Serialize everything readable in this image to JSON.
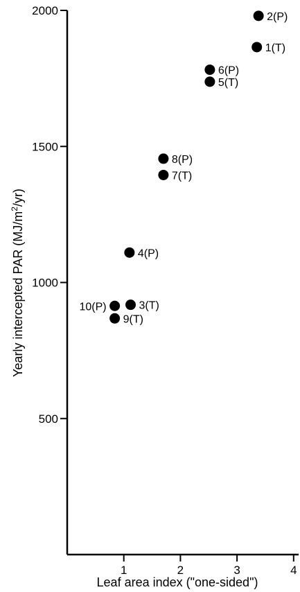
{
  "chart_data": {
    "type": "scatter",
    "title": "",
    "xlabel": "Leaf area index (\"one-sided\")",
    "ylabel_main": "Yearly intercepted PAR (MJ/m",
    "ylabel_sup": "2",
    "ylabel_end": "/yr)",
    "xlim": [
      0,
      4.2
    ],
    "ylim": [
      0,
      2000
    ],
    "x_ticks": [
      1,
      2,
      3,
      4
    ],
    "x_tick_labels": [
      "1",
      "2",
      "3",
      "4"
    ],
    "y_ticks": [
      500,
      1000,
      1500,
      2000
    ],
    "y_tick_labels": [
      "500",
      "1000",
      "1500",
      "2000"
    ],
    "grid": false,
    "legend": "none",
    "marker_color": "#000000",
    "points": [
      {
        "label": "1(T)",
        "x": 3.35,
        "y": 1865,
        "label_side": "right"
      },
      {
        "label": "2(P)",
        "x": 3.38,
        "y": 1980,
        "label_side": "right"
      },
      {
        "label": "3(T)",
        "x": 1.12,
        "y": 918,
        "label_side": "right"
      },
      {
        "label": "4(P)",
        "x": 1.1,
        "y": 1110,
        "label_side": "right"
      },
      {
        "label": "5(T)",
        "x": 2.52,
        "y": 1738,
        "label_side": "right"
      },
      {
        "label": "6(P)",
        "x": 2.52,
        "y": 1782,
        "label_side": "right"
      },
      {
        "label": "7(T)",
        "x": 1.7,
        "y": 1395,
        "label_side": "right"
      },
      {
        "label": "8(P)",
        "x": 1.7,
        "y": 1455,
        "label_side": "right"
      },
      {
        "label": "9(T)",
        "x": 0.84,
        "y": 868,
        "label_side": "right"
      },
      {
        "label": "10(P)",
        "x": 0.84,
        "y": 914,
        "label_side": "left"
      }
    ]
  }
}
